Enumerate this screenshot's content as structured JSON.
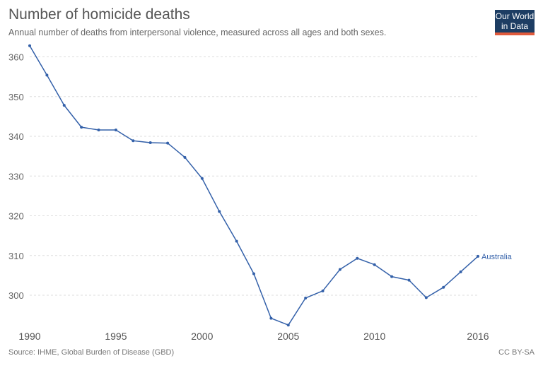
{
  "header": {
    "title": "Number of homicide deaths",
    "subtitle": "Annual number of deaths from interpersonal violence, measured across all ages and both sexes."
  },
  "logo": {
    "line1": "Our World",
    "line2": "in Data"
  },
  "footer": {
    "source": "Source: IHME, Global Burden of Disease (GBD)",
    "license": "CC BY-SA"
  },
  "colors": {
    "series": "#3360a9",
    "grid": "#dddddd",
    "logo_bg": "#1d3d63",
    "logo_accent": "#e05a3c"
  },
  "chart_data": {
    "type": "line",
    "title": "Number of homicide deaths",
    "subtitle": "Annual number of deaths from interpersonal violence, measured across all ages and both sexes.",
    "xlabel": "",
    "ylabel": "",
    "xlim": [
      1990,
      2016
    ],
    "ylim": [
      292,
      364
    ],
    "x_ticks": [
      1990,
      1995,
      2000,
      2005,
      2010,
      2016
    ],
    "y_ticks": [
      300,
      310,
      320,
      330,
      340,
      350,
      360
    ],
    "grid": "horizontal dashed",
    "series": [
      {
        "name": "Australia",
        "x": [
          1990,
          1991,
          1992,
          1993,
          1994,
          1995,
          1996,
          1997,
          1998,
          1999,
          2000,
          2001,
          2002,
          2003,
          2004,
          2005,
          2006,
          2007,
          2008,
          2009,
          2010,
          2011,
          2012,
          2013,
          2014,
          2015,
          2016
        ],
        "values": [
          362.8,
          355.4,
          347.8,
          342.3,
          341.6,
          341.6,
          338.9,
          338.4,
          338.3,
          334.7,
          329.4,
          321.1,
          313.6,
          305.4,
          294.2,
          292.5,
          299.3,
          301.1,
          306.5,
          309.3,
          307.7,
          304.7,
          303.8,
          299.4,
          302.0,
          305.9,
          309.8
        ]
      }
    ]
  }
}
